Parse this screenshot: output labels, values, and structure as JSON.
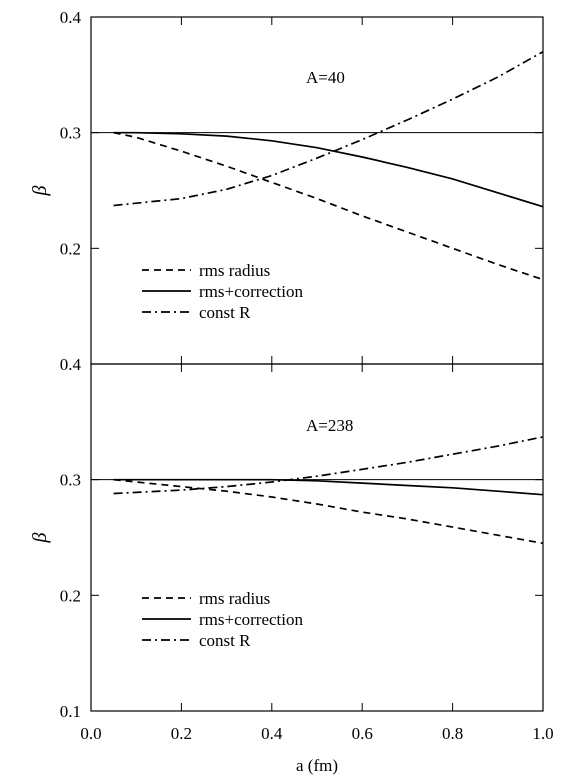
{
  "chart_data": [
    {
      "type": "line",
      "annotation": "A=40",
      "ylabel": "β",
      "xlim": [
        0.05,
        1.0
      ],
      "ylim": [
        0.1,
        0.4
      ],
      "y_ticks": [
        "0.2",
        "0.3",
        "0.4"
      ],
      "x": [
        0.05,
        0.1,
        0.2,
        0.3,
        0.4,
        0.5,
        0.6,
        0.7,
        0.8,
        0.9,
        1.0
      ],
      "series": [
        {
          "name": "rms radius",
          "style": "dashed",
          "values": [
            0.3,
            0.296,
            0.284,
            0.271,
            0.257,
            0.243,
            0.228,
            0.214,
            0.2,
            0.186,
            0.173
          ]
        },
        {
          "name": "rms+correction",
          "style": "solid",
          "values": [
            0.3,
            0.3,
            0.299,
            0.297,
            0.293,
            0.287,
            0.279,
            0.27,
            0.26,
            0.248,
            0.236
          ]
        },
        {
          "name": "const R",
          "style": "dashdot",
          "values": [
            0.237,
            0.239,
            0.243,
            0.251,
            0.263,
            0.278,
            0.294,
            0.311,
            0.329,
            0.348,
            0.37
          ]
        }
      ],
      "reference_line": 0.3,
      "legend": [
        "rms radius",
        "rms+correction",
        "const R"
      ],
      "legend_position": "bottom-left"
    },
    {
      "type": "line",
      "annotation": "A=238",
      "ylabel": "β",
      "xlabel": "a (fm)",
      "xlim": [
        0.05,
        1.0
      ],
      "ylim": [
        0.1,
        0.4
      ],
      "y_ticks": [
        "0.1",
        "0.2",
        "0.3",
        "0.4"
      ],
      "x_ticks": [
        "0.0",
        "0.2",
        "0.4",
        "0.6",
        "0.8",
        "1.0"
      ],
      "x": [
        0.05,
        0.1,
        0.2,
        0.3,
        0.4,
        0.5,
        0.6,
        0.7,
        0.8,
        0.9,
        1.0
      ],
      "series": [
        {
          "name": "rms radius",
          "style": "dashed",
          "values": [
            0.3,
            0.298,
            0.294,
            0.29,
            0.285,
            0.279,
            0.272,
            0.266,
            0.259,
            0.252,
            0.245
          ]
        },
        {
          "name": "rms+correction",
          "style": "solid",
          "values": [
            0.3,
            0.3,
            0.3,
            0.3,
            0.3,
            0.299,
            0.297,
            0.295,
            0.293,
            0.29,
            0.287
          ]
        },
        {
          "name": "const R",
          "style": "dashdot",
          "values": [
            0.288,
            0.289,
            0.291,
            0.294,
            0.298,
            0.303,
            0.309,
            0.315,
            0.322,
            0.329,
            0.337
          ]
        }
      ],
      "reference_line": 0.3,
      "legend": [
        "rms radius",
        "rms+correction",
        "const R"
      ],
      "legend_position": "bottom-left"
    }
  ]
}
